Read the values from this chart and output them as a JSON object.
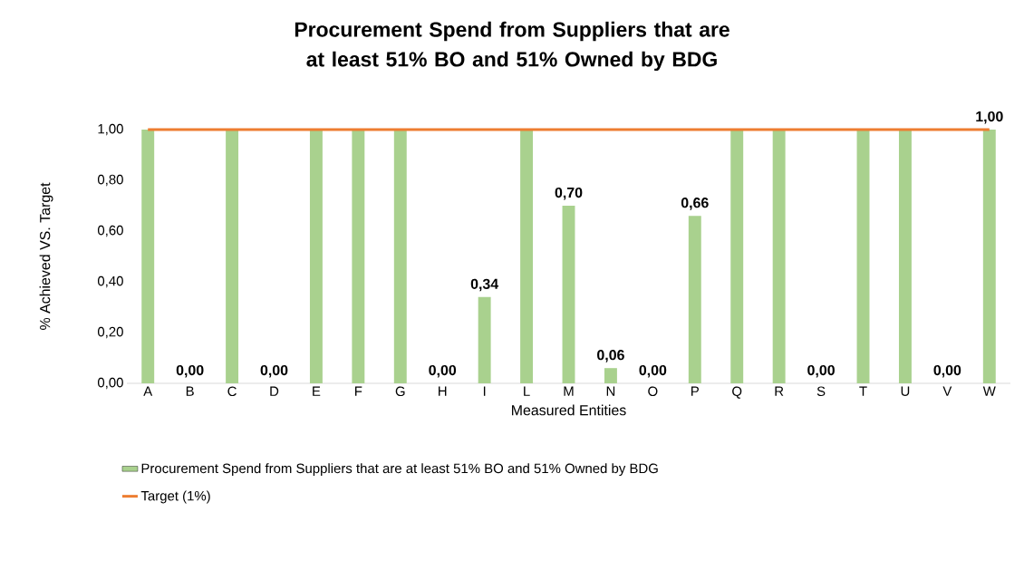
{
  "chart_data": {
    "type": "bar",
    "title": "Procurement  Spend from Suppliers that are at least 51% BO and 51% Owned by BDG",
    "xlabel": "Measured Entities",
    "ylabel": "% Achieved VS. Target",
    "categories": [
      "A",
      "B",
      "C",
      "D",
      "E",
      "F",
      "G",
      "H",
      "I",
      "L",
      "M",
      "N",
      "O",
      "P",
      "Q",
      "R",
      "S",
      "T",
      "U",
      "V",
      "W"
    ],
    "series": [
      {
        "name": "Procurement Spend from  Suppliers that are at least 51% BO and 51% Owned by BDG",
        "color": "#a9d18e",
        "values": [
          1,
          0,
          1,
          0,
          1,
          1,
          1,
          0,
          0.34,
          1,
          0.7,
          0.06,
          0,
          0.66,
          1,
          1,
          0,
          1,
          1,
          0,
          1
        ],
        "value_labels": [
          null,
          "0,00",
          null,
          "0,00",
          null,
          null,
          null,
          "0,00",
          "0,34",
          null,
          "0,70",
          "0,06",
          "0,00",
          "0,66",
          null,
          null,
          "0,00",
          null,
          null,
          "0,00",
          "1,00"
        ]
      },
      {
        "name": "Target (1%)",
        "type": "line",
        "color": "#ed7d31",
        "values": [
          1,
          1,
          1,
          1,
          1,
          1,
          1,
          1,
          1,
          1,
          1,
          1,
          1,
          1,
          1,
          1,
          1,
          1,
          1,
          1,
          1
        ]
      }
    ],
    "ylim": [
      0,
      1
    ],
    "yticks": [
      {
        "value": 0,
        "label": "0,00"
      },
      {
        "value": 0.2,
        "label": "0,20"
      },
      {
        "value": 0.4,
        "label": "0,40"
      },
      {
        "value": 0.6,
        "label": "0,60"
      },
      {
        "value": 0.8,
        "label": "0,80"
      },
      {
        "value": 1,
        "label": "1,00"
      }
    ],
    "legend": "bottom"
  }
}
